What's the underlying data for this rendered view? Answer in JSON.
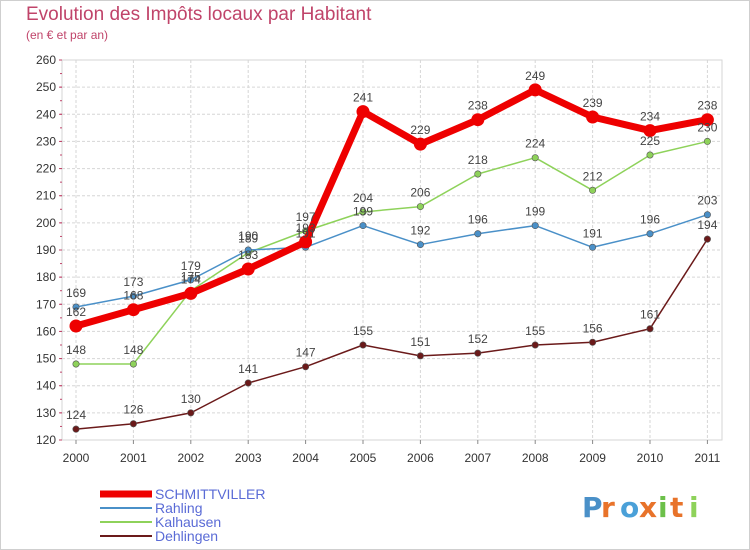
{
  "header": {
    "title": "Evolution des Impôts locaux par Habitant",
    "subtitle": "(en € et par an)"
  },
  "chart_data": {
    "type": "line",
    "title": "Evolution des Impôts locaux par Habitant",
    "subtitle": "(en € et par an)",
    "xlabel": "",
    "ylabel": "",
    "x": [
      "2000",
      "2001",
      "2002",
      "2003",
      "2004",
      "2005",
      "2006",
      "2007",
      "2008",
      "2009",
      "2010",
      "2011"
    ],
    "ylim": [
      120,
      260
    ],
    "yticks": [
      120,
      130,
      140,
      150,
      160,
      170,
      180,
      190,
      200,
      210,
      220,
      230,
      240,
      250,
      260
    ],
    "grid": true,
    "legend": "bottom-left",
    "series": [
      {
        "name": "SCHMITTVILLER",
        "color": "#ee0000",
        "values": [
          162,
          168,
          174,
          183,
          193,
          241,
          229,
          238,
          249,
          239,
          234,
          238
        ]
      },
      {
        "name": "Rahling",
        "color": "#4a90c8",
        "values": [
          169,
          173,
          179,
          190,
          191,
          199,
          192,
          196,
          199,
          191,
          196,
          203
        ]
      },
      {
        "name": "Kalhausen",
        "color": "#8ed25a",
        "values": [
          148,
          148,
          175,
          189,
          197,
          204,
          206,
          218,
          224,
          212,
          225,
          230
        ]
      },
      {
        "name": "Dehlingen",
        "color": "#6b1a1a",
        "values": [
          124,
          126,
          130,
          141,
          147,
          155,
          151,
          152,
          155,
          156,
          161,
          194
        ]
      }
    ]
  },
  "logo": {
    "text": "Proxiti",
    "letter_colors": [
      "#4a90c8",
      "#e8732a",
      "#4aa0d8",
      "#e8732a",
      "#6cc04a",
      "#e8732a",
      "#8ed25a"
    ]
  }
}
